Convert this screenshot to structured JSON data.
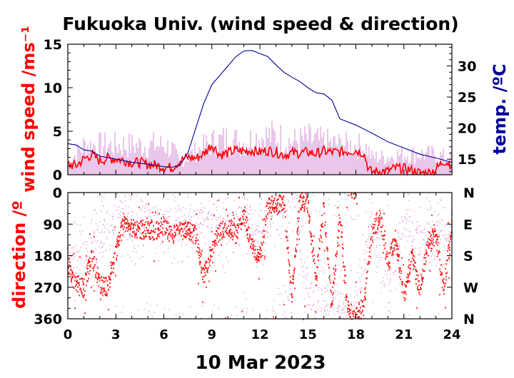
{
  "title": "Fukuoka Univ. (wind speed & direction)",
  "date_label": "10 Mar 2023",
  "colors": {
    "gust": "#dda0dd",
    "mean": "#ff0000",
    "temp": "#000099",
    "title": "#000000"
  },
  "chart_data": [
    {
      "type": "line",
      "panel": "wind-speed",
      "ylabel": "wind speed /ms⁻¹",
      "ylim": [
        0,
        15
      ],
      "yticks": [
        "0",
        "5",
        "10",
        "15"
      ],
      "y2label": "temp. /ºC",
      "y2lim": [
        12.5,
        33.5
      ],
      "y2ticks": [
        "15",
        "20",
        "25",
        "30"
      ],
      "xlim": [
        0,
        24
      ],
      "series": [
        {
          "role": "gust",
          "x": [
            0,
            1,
            2,
            3,
            4,
            5,
            6,
            6.5,
            7,
            8,
            9,
            10,
            11,
            12,
            13,
            14,
            15,
            16,
            17,
            18,
            18.7,
            19,
            20,
            21,
            22,
            23,
            24
          ],
          "values": [
            2.0,
            5.0,
            5.0,
            5.0,
            5.0,
            5.0,
            5.0,
            4.5,
            2.0,
            4.0,
            5.5,
            6.0,
            5.5,
            6.5,
            6.5,
            5.5,
            6.0,
            5.5,
            5.0,
            5.0,
            4.5,
            3.0,
            3.0,
            3.5,
            3.5,
            3.5,
            2.5
          ]
        },
        {
          "role": "mean",
          "x": [
            0,
            0.5,
            1,
            1.5,
            2,
            2.5,
            3,
            3.5,
            4,
            4.5,
            5,
            5.5,
            6,
            6.5,
            7,
            7.5,
            8,
            8.5,
            9,
            9.5,
            10,
            10.5,
            11,
            11.5,
            12,
            12.5,
            13,
            13.5,
            14,
            14.5,
            15,
            15.5,
            16,
            16.5,
            17,
            17.5,
            18,
            18.5,
            18.8,
            19,
            19.5,
            20,
            20.5,
            21,
            21.5,
            22,
            22.5,
            23,
            23.5,
            24
          ],
          "values": [
            1.2,
            1.0,
            1.8,
            2.3,
            1.6,
            1.9,
            1.8,
            1.7,
            1.4,
            1.4,
            1.2,
            1.1,
            0.9,
            0.8,
            1.6,
            2.0,
            1.9,
            2.4,
            3.5,
            2.3,
            2.5,
            2.8,
            2.7,
            2.8,
            2.6,
            2.8,
            2.6,
            2.3,
            2.5,
            2.5,
            2.6,
            2.4,
            2.7,
            2.6,
            2.6,
            2.7,
            2.8,
            2.5,
            0.6,
            0.3,
            0.4,
            0.4,
            0.8,
            0.7,
            0.5,
            0.2,
            0.2,
            0.6,
            1.6,
            1.2
          ]
        },
        {
          "role": "temp",
          "axis": "right",
          "x": [
            0,
            0.5,
            1,
            1.5,
            2,
            3,
            4,
            5,
            6,
            6.5,
            7,
            7.5,
            8,
            8.5,
            9,
            9.5,
            10,
            10.5,
            11,
            11.5,
            12,
            12.5,
            13,
            13.5,
            14,
            14.5,
            15,
            15.5,
            16,
            16.5,
            17,
            18,
            19,
            20,
            21,
            22,
            23,
            24
          ],
          "values": [
            17.5,
            17.3,
            16.5,
            16.3,
            15.5,
            15.0,
            14.5,
            14.2,
            13.8,
            13.7,
            14.0,
            16.0,
            20.0,
            24.0,
            27.0,
            28.5,
            30.0,
            31.5,
            32.4,
            32.5,
            32.0,
            31.5,
            30.2,
            29.0,
            28.2,
            27.5,
            26.5,
            25.7,
            25.5,
            24.5,
            21.5,
            20.5,
            19.2,
            17.8,
            16.8,
            15.8,
            15.2,
            14.5
          ]
        }
      ]
    },
    {
      "type": "scatter",
      "panel": "direction",
      "ylabel": "direction /º",
      "ylim": [
        0,
        360
      ],
      "yticks": [
        "0",
        "90",
        "180",
        "270",
        "360"
      ],
      "y2ticks": [
        "N",
        "E",
        "S",
        "W",
        "N"
      ],
      "xlim": [
        0,
        24
      ],
      "xticks": [
        "0",
        "3",
        "6",
        "9",
        "12",
        "15",
        "18",
        "21",
        "24"
      ],
      "series": [
        {
          "role": "gust",
          "x": [
            0,
            1,
            2,
            3,
            4,
            5,
            6,
            7,
            8,
            9,
            10,
            11,
            12,
            13,
            14,
            15,
            16,
            17,
            18,
            19,
            20,
            21,
            22,
            23,
            24
          ],
          "values": [
            200,
            180,
            120,
            80,
            90,
            70,
            90,
            80,
            90,
            60,
            120,
            40,
            140,
            30,
            20,
            300,
            310,
            320,
            340,
            60,
            300,
            80,
            150,
            90,
            150
          ]
        },
        {
          "role": "mean",
          "x": [
            0,
            0.5,
            1,
            1.5,
            2,
            2.5,
            3,
            3.5,
            4,
            4.5,
            5,
            5.5,
            6,
            6.5,
            7,
            7.5,
            8,
            8.5,
            9,
            9.5,
            10,
            10.5,
            11,
            11.5,
            12,
            12.5,
            13,
            13.5,
            14,
            14.5,
            15,
            15.5,
            16,
            16.5,
            17,
            17.5,
            18,
            18.5,
            19,
            19.5,
            20,
            20.5,
            21,
            21.5,
            22,
            22.5,
            23,
            23.5,
            24
          ],
          "values": [
            200,
            260,
            270,
            180,
            260,
            270,
            170,
            80,
            100,
            105,
            100,
            110,
            90,
            120,
            110,
            105,
            120,
            240,
            160,
            110,
            90,
            120,
            60,
            150,
            180,
            30,
            40,
            20,
            300,
            20,
            30,
            250,
            40,
            320,
            60,
            340,
            350,
            320,
            120,
            60,
            200,
            130,
            300,
            170,
            280,
            140,
            120,
            270,
            100
          ]
        }
      ]
    }
  ]
}
